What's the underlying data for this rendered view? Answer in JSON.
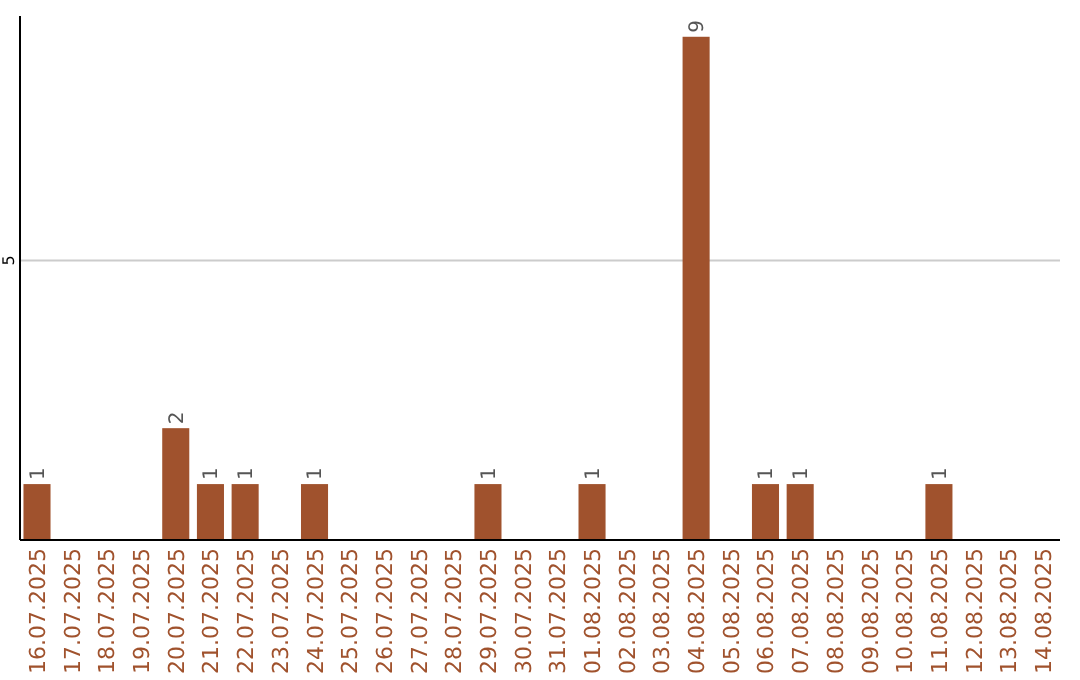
{
  "chart_data": {
    "type": "bar",
    "categories": [
      "16.07.2025",
      "17.07.2025",
      "18.07.2025",
      "19.07.2025",
      "20.07.2025",
      "21.07.2025",
      "22.07.2025",
      "23.07.2025",
      "24.07.2025",
      "25.07.2025",
      "26.07.2025",
      "27.07.2025",
      "28.07.2025",
      "29.07.2025",
      "30.07.2025",
      "31.07.2025",
      "01.08.2025",
      "02.08.2025",
      "03.08.2025",
      "04.08.2025",
      "05.08.2025",
      "06.08.2025",
      "07.08.2025",
      "08.08.2025",
      "09.08.2025",
      "10.08.2025",
      "11.08.2025",
      "12.08.2025",
      "13.08.2025",
      "14.08.2025"
    ],
    "values": [
      1,
      0,
      0,
      0,
      2,
      1,
      1,
      0,
      1,
      0,
      0,
      0,
      0,
      1,
      0,
      0,
      1,
      0,
      0,
      9,
      0,
      1,
      1,
      0,
      0,
      0,
      1,
      0,
      0,
      0
    ],
    "value_labels": [
      "1",
      null,
      null,
      null,
      "2",
      "1",
      "1",
      null,
      "1",
      null,
      null,
      null,
      null,
      "1",
      null,
      null,
      "1",
      null,
      null,
      "9",
      null,
      "1",
      "1",
      null,
      null,
      null,
      "1",
      null,
      null,
      null
    ],
    "color": "#a0522d",
    "ylim": [
      0,
      9.3
    ],
    "yticks": [
      5
    ],
    "grid": "y"
  }
}
